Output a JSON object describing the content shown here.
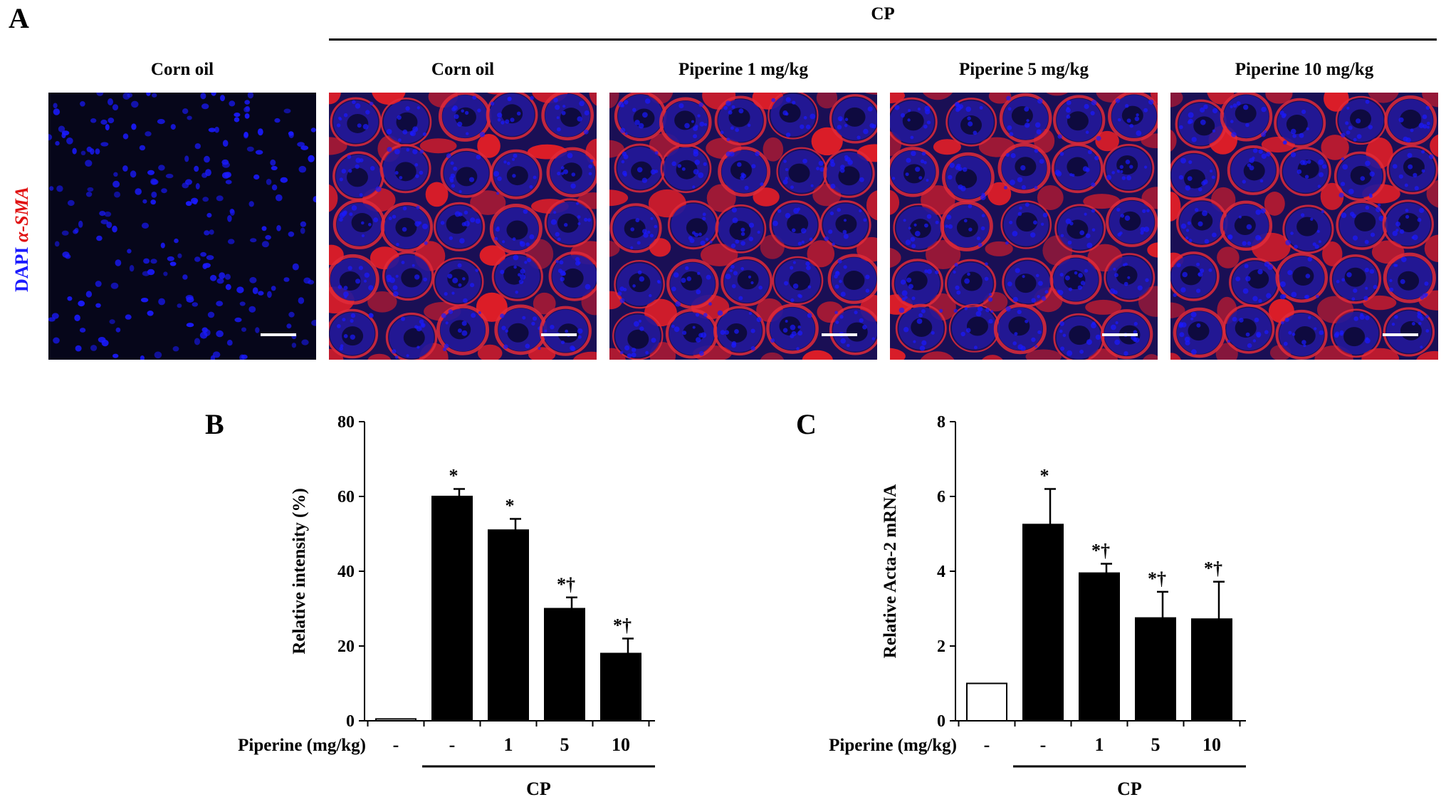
{
  "panel_a": {
    "letter": "A",
    "cp_label": "CP",
    "side_label_dapi": "DAPI",
    "side_label_sma": "α-SMA",
    "images": [
      {
        "header": "Corn oil",
        "type": "dapi"
      },
      {
        "header": "Corn oil",
        "type": "merge"
      },
      {
        "header": "Piperine 1 mg/kg",
        "type": "merge"
      },
      {
        "header": "Piperine 5 mg/kg",
        "type": "merge"
      },
      {
        "header": "Piperine 10 mg/kg",
        "type": "merge"
      }
    ]
  },
  "colors": {
    "bar_fill": "#000000",
    "control_fill": "#ffffff",
    "dapi": "#1a1aff",
    "sma": "#ff2020"
  },
  "chart_data": [
    {
      "letter": "B",
      "type": "bar",
      "ylabel": "Relative intensity  (%)",
      "ylim": [
        0,
        80
      ],
      "yticks": [
        0,
        20,
        40,
        60,
        80
      ],
      "factor_label": "Piperine (mg/kg)",
      "categories": [
        "-",
        "-",
        "1",
        "5",
        "10"
      ],
      "values": [
        0.5,
        60,
        51,
        30,
        18
      ],
      "errors": [
        0,
        2,
        3,
        3,
        4
      ],
      "fills": [
        "white",
        "black",
        "black",
        "black",
        "black"
      ],
      "annotations": [
        "",
        "*",
        "*",
        "*†",
        "*†"
      ],
      "group_label": "CP"
    },
    {
      "letter": "C",
      "type": "bar",
      "ylabel": "Relative  Acta-2 mRNA",
      "ylim": [
        0,
        8
      ],
      "yticks": [
        0,
        2,
        4,
        6,
        8
      ],
      "factor_label": "Piperine (mg/kg)",
      "categories": [
        "-",
        "-",
        "1",
        "5",
        "10"
      ],
      "values": [
        1.0,
        5.25,
        3.95,
        2.75,
        2.72
      ],
      "errors": [
        0,
        0.95,
        0.25,
        0.7,
        1.0
      ],
      "fills": [
        "white",
        "black",
        "black",
        "black",
        "black"
      ],
      "annotations": [
        "",
        "*",
        "*†",
        "*†",
        "*†"
      ],
      "group_label": "CP"
    }
  ]
}
